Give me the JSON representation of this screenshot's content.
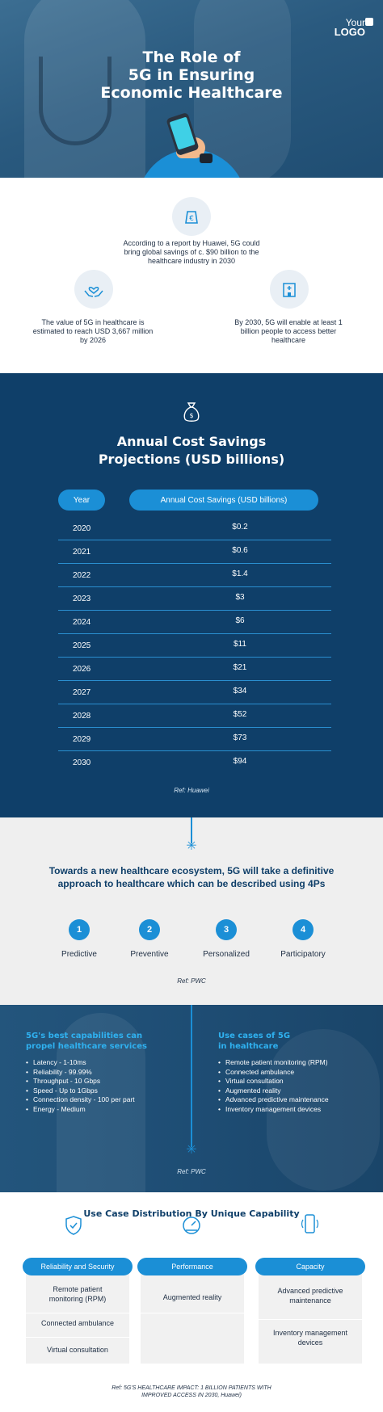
{
  "hero": {
    "logo_line1": "Your",
    "logo_line2": "LOGO",
    "title_lines": [
      "The Role of",
      "5G in Ensuring",
      "Economic Healthcare"
    ]
  },
  "stats": {
    "top": {
      "icon": "euro-coin-icon",
      "text": "According to a report by Huawei, 5G could bring global savings of c. $90 billion to the healthcare industry in 2030"
    },
    "left": {
      "icon": "heart-hands-icon",
      "text": "The value of 5G in healthcare is estimated to reach USD 3,667 million by 2026"
    },
    "right": {
      "icon": "hospital-building-icon",
      "text": "By 2030, 5G will enable at least 1 billion people to access better healthcare"
    }
  },
  "table": {
    "title_lines": [
      "Annual Cost Savings",
      "Projections (USD billions)"
    ],
    "col_year": "Year",
    "col_savings": "Annual Cost Savings (USD billions)",
    "rows": [
      {
        "year": "2020",
        "value": "$0.2"
      },
      {
        "year": "2021",
        "value": "$0.6"
      },
      {
        "year": "2022",
        "value": "$1.4"
      },
      {
        "year": "2023",
        "value": "$3"
      },
      {
        "year": "2024",
        "value": "$6"
      },
      {
        "year": "2025",
        "value": "$11"
      },
      {
        "year": "2026",
        "value": "$21"
      },
      {
        "year": "2027",
        "value": "$34"
      },
      {
        "year": "2028",
        "value": "$52"
      },
      {
        "year": "2029",
        "value": "$73"
      },
      {
        "year": "2030",
        "value": "$94"
      }
    ],
    "ref": "Ref: Huawei"
  },
  "fourp": {
    "title": "Towards a new healthcare ecosystem, 5G will take a definitive approach to healthcare which can be described using 4Ps",
    "items": [
      {
        "num": "1",
        "label": "Predictive"
      },
      {
        "num": "2",
        "label": "Preventive"
      },
      {
        "num": "3",
        "label": "Personalized"
      },
      {
        "num": "4",
        "label": "Participatory"
      }
    ],
    "ref": "Ref: PWC"
  },
  "capabilities": {
    "left_title_lines": [
      "5G's best capabilities can",
      "propel healthcare services"
    ],
    "left_items": [
      "Latency - 1-10ms",
      "Reliability - 99.99%",
      "Throughput - 10 Gbps",
      "Speed - Up to 1Gbps",
      "Connection density - 100 per part",
      "Energy - Medium"
    ],
    "right_title_lines": [
      "Use cases of 5G",
      "in healthcare"
    ],
    "right_items": [
      "Remote patient monitoring (RPM)",
      "Connected ambulance",
      "Virtual consultation",
      "Augmented reality",
      "Advanced predictive maintenance",
      "Inventory management devices"
    ],
    "ref": "Ref: PWC"
  },
  "usecase": {
    "title": "Use Case Distribution By Unique Capability",
    "columns": [
      {
        "icon": "shield-check-icon",
        "header": "Reliability and Security",
        "cells": [
          "Remote patient monitoring (RPM)",
          "Connected ambulance",
          "Virtual consultation"
        ]
      },
      {
        "icon": "speedometer-icon",
        "header": "Performance",
        "cells": [
          "Augmented reality"
        ]
      },
      {
        "icon": "smartphone-icon",
        "header": "Capacity",
        "cells": [
          "Advanced predictive maintenance",
          "Inventory management devices"
        ]
      }
    ],
    "ref_lines": [
      "Ref: 5G'S HEALTHCARE IMPACT: 1 BILLION PATIENTS WITH",
      "IMPROVED ACCESS IN 2030, Huawei)"
    ]
  },
  "colors": {
    "navy": "#0f3f69",
    "accent_blue": "#1b8fd6",
    "light_grey": "#efefef"
  }
}
